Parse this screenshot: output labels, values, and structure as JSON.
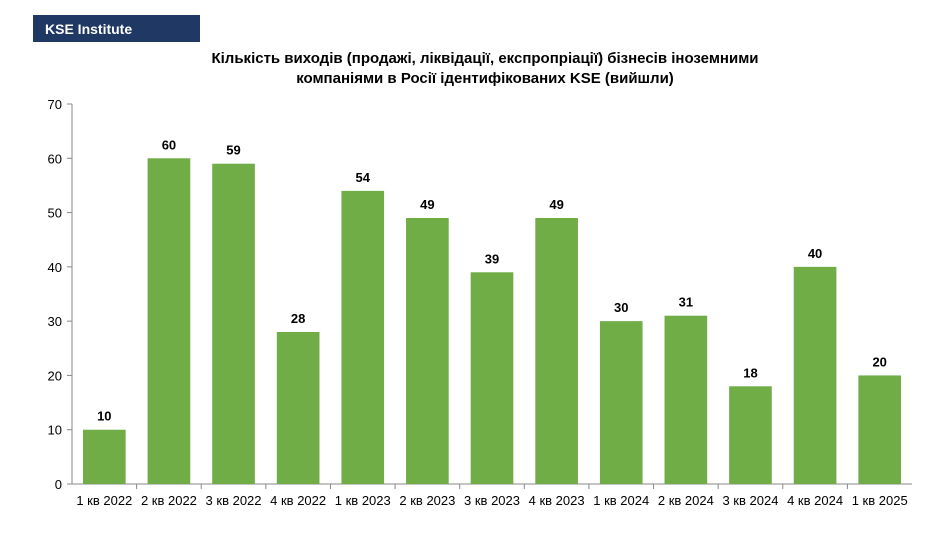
{
  "badge": {
    "label": "KSE Institute"
  },
  "colors": {
    "bar": "#70ad47",
    "badge_bg": "#1f3864"
  },
  "chart_data": {
    "type": "bar",
    "title_lines": [
      "Кількість  виходів  (продажі, ліквідації,  експропріації)  бізнесів іноземними",
      "компаніями в Росії ідентифікованих  KSE (вийшли)"
    ],
    "categories": [
      "1 кв 2022",
      "2 кв 2022",
      "3 кв 2022",
      "4 кв 2022",
      "1 кв 2023",
      "2 кв 2023",
      "3 кв 2023",
      "4 кв 2023",
      "1 кв 2024",
      "2 кв 2024",
      "3 кв 2024",
      "4 кв 2024",
      "1 кв 2025"
    ],
    "values": [
      10,
      60,
      59,
      28,
      54,
      49,
      39,
      49,
      30,
      31,
      18,
      40,
      20
    ],
    "yticks": [
      0,
      10,
      20,
      30,
      40,
      50,
      60,
      70
    ],
    "ylim": [
      0,
      70
    ],
    "grid": false,
    "legend": "none"
  }
}
